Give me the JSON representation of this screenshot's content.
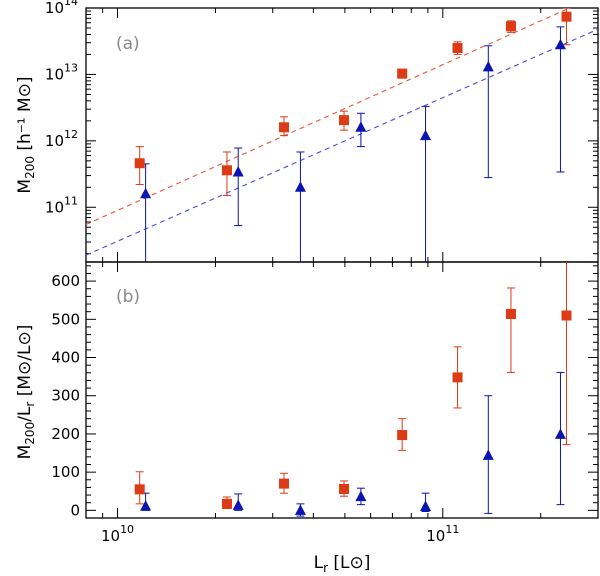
{
  "chart_data": [
    {
      "type": "scatter",
      "panel_label": "(a)",
      "ylabel_main": "M",
      "ylabel_sub": "200",
      "ylabel_rest": " [h⁻¹ M⊙]",
      "xscale": "log",
      "yscale": "log",
      "xlim": [
        8000000000.0,
        300000000000.0
      ],
      "ylim": [
        15000000000.0,
        100000000000000.0
      ],
      "yticks": [
        {
          "v": 100000000000.0,
          "b": "10",
          "e": "11"
        },
        {
          "v": 1000000000000.0,
          "b": "10",
          "e": "12"
        },
        {
          "v": 10000000000000.0,
          "b": "10",
          "e": "13"
        },
        {
          "v": 100000000000000.0,
          "b": "10",
          "e": "14"
        }
      ],
      "colors": {
        "red": "#dd3a16",
        "blue": "#0a14b0",
        "red_line": "#e8563a",
        "blue_line": "#4a4ed8"
      },
      "series": [
        {
          "name": "red squares",
          "marker": "square",
          "color": "#dd3a16",
          "points": [
            {
              "x": 11700000000.0,
              "y": 460000000000.0,
              "lo": 220000000000.0,
              "hi": 820000000000.0
            },
            {
              "x": 21700000000.0,
              "y": 360000000000.0,
              "lo": 150000000000.0,
              "hi": 680000000000.0
            },
            {
              "x": 32500000000.0,
              "y": 1600000000000.0,
              "lo": 1200000000000.0,
              "hi": 2300000000000.0
            },
            {
              "x": 49700000000.0,
              "y": 2050000000000.0,
              "lo": 1450000000000.0,
              "hi": 2800000000000.0
            },
            {
              "x": 75000000000.0,
              "y": 10300000000000.0,
              "lo": 8800000000000.0,
              "hi": 11800000000000.0
            },
            {
              "x": 111000000000.0,
              "y": 25000000000000.0,
              "lo": 20000000000000.0,
              "hi": 31000000000000.0
            },
            {
              "x": 162000000000.0,
              "y": 53000000000000.0,
              "lo": 43000000000000.0,
              "hi": 64000000000000.0
            },
            {
              "x": 240000000000.0,
              "y": 74000000000000.0,
              "lo": 28000000000000.0,
              "hi": 100000000000000.0
            }
          ]
        },
        {
          "name": "blue triangles",
          "marker": "triangle",
          "color": "#0a14b0",
          "points": [
            {
              "x": 12200000000.0,
              "y": 160000000000.0,
              "lo": 1000000000.0,
              "hi": 450000000000.0
            },
            {
              "x": 23500000000.0,
              "y": 340000000000.0,
              "lo": 53000000000.0,
              "hi": 780000000000.0
            },
            {
              "x": 36500000000.0,
              "y": 200000000000.0,
              "lo": 1000000000.0,
              "hi": 680000000000.0
            },
            {
              "x": 56000000000.0,
              "y": 1600000000000.0,
              "lo": 820000000000.0,
              "hi": 2600000000000.0
            },
            {
              "x": 88500000000.0,
              "y": 1200000000000.0,
              "lo": 1000000000.0,
              "hi": 3300000000000.0
            },
            {
              "x": 138000000000.0,
              "y": 13000000000000.0,
              "lo": 280000000000.0,
              "hi": 27000000000000.0
            },
            {
              "x": 230000000000.0,
              "y": 28000000000000.0,
              "lo": 340000000000.0,
              "hi": 52000000000000.0
            }
          ]
        }
      ],
      "fit_lines": [
        {
          "name": "red fit",
          "color": "#e8563a",
          "x": [
            8000000000.0,
            245000000000.0
          ],
          "y": [
            55000000000.0,
            100000000000000.0
          ]
        },
        {
          "name": "blue fit",
          "color": "#4a4ed8",
          "x": [
            8000000000.0,
            300000000000.0
          ],
          "y": [
            19000000000.0,
            48000000000000.0
          ]
        }
      ]
    },
    {
      "type": "scatter",
      "panel_label": "(b)",
      "ylabel_main": "M",
      "ylabel_sub": "200",
      "ylabel_mid": "/L",
      "ylabel_sub2": "r",
      "ylabel_rest": " [M⊙/L⊙]",
      "xlabel_main": "L",
      "xlabel_sub": "r",
      "xlabel_rest": " [L⊙]",
      "xscale": "log",
      "yscale": "linear",
      "xlim": [
        8000000000.0,
        300000000000.0
      ],
      "ylim": [
        -20,
        650
      ],
      "yticks": [
        {
          "v": 0,
          "t": "0"
        },
        {
          "v": 100,
          "t": "100"
        },
        {
          "v": 200,
          "t": "200"
        },
        {
          "v": 300,
          "t": "300"
        },
        {
          "v": 400,
          "t": "400"
        },
        {
          "v": 500,
          "t": "500"
        },
        {
          "v": 600,
          "t": "600"
        }
      ],
      "xticks": [
        {
          "v": 10000000000.0,
          "b": "10",
          "e": "10"
        },
        {
          "v": 100000000000.0,
          "b": "10",
          "e": "11"
        }
      ],
      "series": [
        {
          "name": "red squares",
          "marker": "square",
          "color": "#dd3a16",
          "points": [
            {
              "x": 11700000000.0,
              "y": 55,
              "lo": 17,
              "hi": 101
            },
            {
              "x": 21700000000.0,
              "y": 17,
              "lo": 5,
              "hi": 35
            },
            {
              "x": 32500000000.0,
              "y": 70,
              "lo": 45,
              "hi": 97
            },
            {
              "x": 49700000000.0,
              "y": 56,
              "lo": 37,
              "hi": 77
            },
            {
              "x": 75000000000.0,
              "y": 197,
              "lo": 157,
              "hi": 240
            },
            {
              "x": 111000000000.0,
              "y": 348,
              "lo": 268,
              "hi": 428
            },
            {
              "x": 162000000000.0,
              "y": 514,
              "lo": 361,
              "hi": 582
            },
            {
              "x": 240000000000.0,
              "y": 510,
              "lo": 172,
              "hi": 660
            }
          ]
        },
        {
          "name": "blue triangles",
          "marker": "triangle",
          "color": "#0a14b0",
          "points": [
            {
              "x": 12200000000.0,
              "y": 11,
              "lo": 0,
              "hi": 45
            },
            {
              "x": 23500000000.0,
              "y": 13,
              "lo": 0,
              "hi": 43
            },
            {
              "x": 36500000000.0,
              "y": 0,
              "lo": -15,
              "hi": 17
            },
            {
              "x": 56000000000.0,
              "y": 36,
              "lo": 15,
              "hi": 58
            },
            {
              "x": 88500000000.0,
              "y": 10,
              "lo": -3,
              "hi": 45
            },
            {
              "x": 138000000000.0,
              "y": 144,
              "lo": -8,
              "hi": 300
            },
            {
              "x": 230000000000.0,
              "y": 199,
              "lo": 15,
              "hi": 361
            }
          ]
        }
      ]
    }
  ]
}
